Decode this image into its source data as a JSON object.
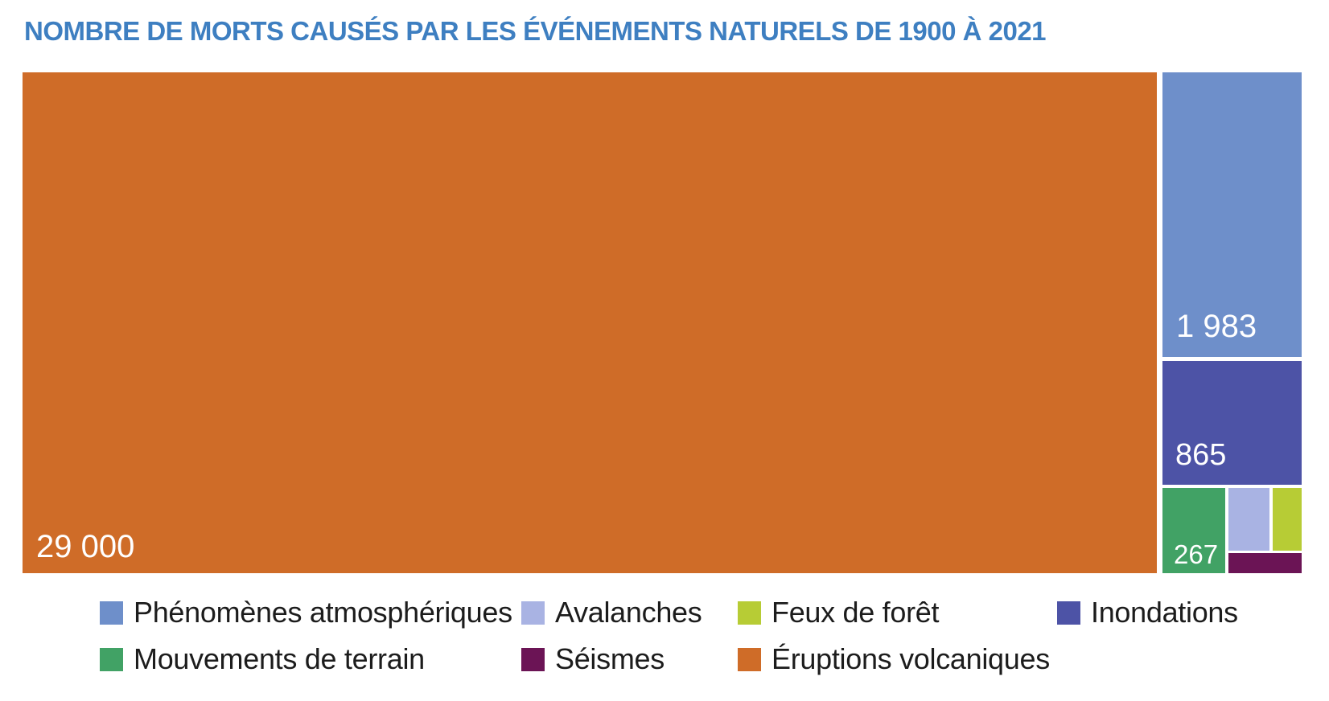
{
  "title": "NOMBRE DE MORTS CAUSÉS PAR LES ÉVÉNEMENTS NATURELS DE 1900 À 2021",
  "accent_color": "#3e7fc1",
  "chart_data": {
    "type": "treemap",
    "title": "Nombre de morts causés par les événements naturels de 1900 à 2021",
    "legend_position": "bottom",
    "items": [
      {
        "label": "Éruptions volcaniques",
        "value": 29000,
        "value_label": "29 000",
        "color": "#cf6c28"
      },
      {
        "label": "Phénomènes atmosphériques",
        "value": 1983,
        "value_label": "1 983",
        "color": "#6e8fca"
      },
      {
        "label": "Inondations",
        "value": 865,
        "value_label": "865",
        "color": "#4d53a6"
      },
      {
        "label": "Mouvements de terrain",
        "value": 267,
        "value_label": "267",
        "color": "#41a265"
      },
      {
        "label": "Avalanches",
        "color": "#a9b3e3"
      },
      {
        "label": "Feux de forêt",
        "color": "#b7cc35"
      },
      {
        "label": "Séismes",
        "color": "#6b1455"
      }
    ]
  }
}
